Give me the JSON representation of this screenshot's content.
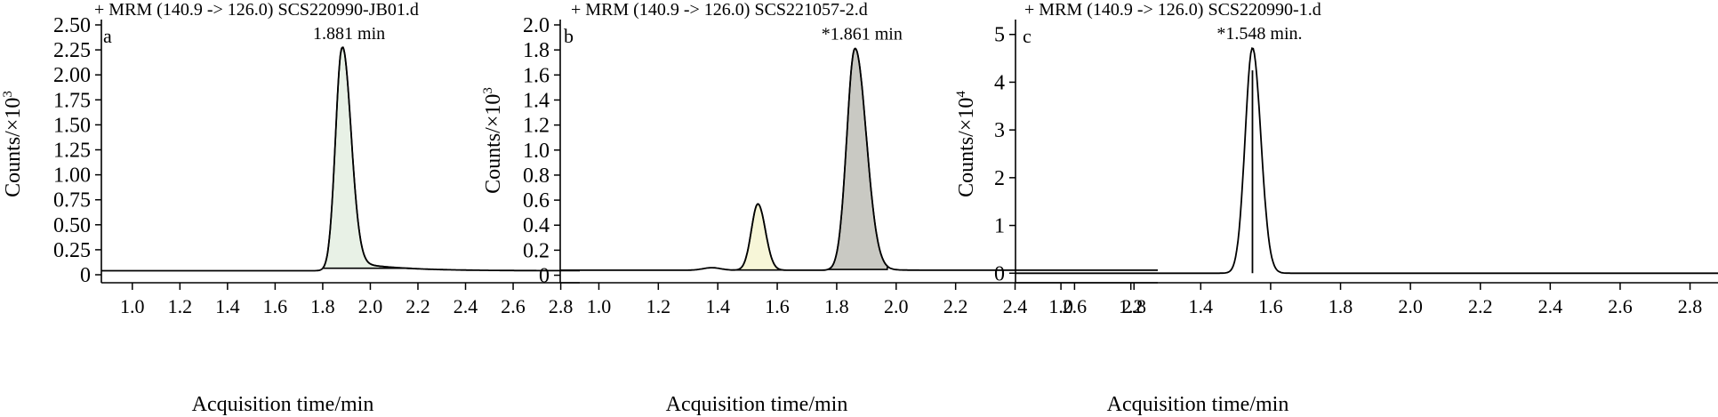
{
  "chart_data": [
    {
      "type": "line",
      "panel_label": "a",
      "title": "+ MRM (140.9 -> 126.0) SCS220990-JB01.d",
      "xlabel": "Acquisition time/min",
      "ylabel_prefix": "Counts/×10",
      "ylabel_exp": "3",
      "xlim": [
        0.87,
        2.88
      ],
      "ylim": [
        -0.08,
        2.5
      ],
      "xticks": [
        1.0,
        1.2,
        1.4,
        1.6,
        1.8,
        2.0,
        2.2,
        2.4,
        2.6,
        2.8
      ],
      "xtick_labels": [
        "1.0",
        "1.2",
        "1.4",
        "1.6",
        "1.8",
        "2.0",
        "2.2",
        "2.4",
        "2.6",
        "2.8"
      ],
      "yticks": [
        0,
        0.25,
        0.5,
        0.75,
        1.0,
        1.25,
        1.5,
        1.75,
        2.0,
        2.25,
        2.5
      ],
      "ytick_labels": [
        "0",
        "0.25",
        "0.50",
        "0.75",
        "1.00",
        "1.25",
        "1.50",
        "1.75",
        "2.00",
        "2.25",
        "2.50"
      ],
      "baseline": 0.04,
      "peaks": [
        {
          "rt": 1.881,
          "height": 2.23,
          "sigma_left": 0.027,
          "sigma_right": 0.037,
          "tail_amp": 0.105,
          "tail_tau": 0.19,
          "label": "1.881 min",
          "fill": "#e8f1e6",
          "integration": [
            1.8,
            2.17
          ]
        }
      ]
    },
    {
      "type": "line",
      "panel_label": "b",
      "title": "+ MRM (140.9 -> 126.0) SCS221057-2.d",
      "xlabel": "Acquisition time/min",
      "ylabel_prefix": "Counts/×10",
      "ylabel_exp": "3",
      "xlim": [
        0.87,
        2.88
      ],
      "ylim": [
        -0.06,
        2.0
      ],
      "xticks": [
        1.0,
        1.2,
        1.4,
        1.6,
        1.8,
        2.0,
        2.2,
        2.4,
        2.6,
        2.8
      ],
      "xtick_labels": [
        "1.0",
        "1.2",
        "1.4",
        "1.6",
        "1.8",
        "2.0",
        "2.2",
        "2.4",
        "2.6",
        "2.8"
      ],
      "yticks": [
        0,
        0.2,
        0.4,
        0.6,
        0.8,
        1.0,
        1.2,
        1.4,
        1.6,
        1.8,
        2.0
      ],
      "ytick_labels": [
        "0",
        "0.2",
        "0.4",
        "0.6",
        "0.8",
        "1.0",
        "1.2",
        "1.4",
        "1.6",
        "1.8",
        "2.0"
      ],
      "baseline": 0.04,
      "peaks": [
        {
          "rt": 1.38,
          "height": 0.02,
          "sigma_left": 0.03,
          "sigma_right": 0.03,
          "tail_amp": 0,
          "tail_tau": 0.1,
          "label": "",
          "fill": "none",
          "integration": null
        },
        {
          "rt": 1.535,
          "height": 0.53,
          "sigma_left": 0.022,
          "sigma_right": 0.025,
          "tail_amp": 0,
          "tail_tau": 0.1,
          "label": "",
          "fill": "#f7f6d8",
          "integration": [
            1.45,
            1.62
          ]
        },
        {
          "rt": 1.861,
          "height": 1.77,
          "sigma_left": 0.027,
          "sigma_right": 0.038,
          "tail_amp": 0.04,
          "tail_tau": 0.05,
          "label": "*1.861 min",
          "fill": "#c9c9c3",
          "integration": [
            1.77,
            1.97
          ]
        }
      ]
    },
    {
      "type": "line",
      "panel_label": "c",
      "title": "+ MRM (140.9 -> 126.0) SCS220990-1.d",
      "xlabel": "Acquisition time/min",
      "ylabel_prefix": "Counts/×10",
      "ylabel_exp": "4",
      "xlim": [
        0.87,
        2.88
      ],
      "ylim": [
        -0.2,
        5.2
      ],
      "xticks": [
        1.0,
        1.2,
        1.4,
        1.6,
        1.8,
        2.0,
        2.2,
        2.4,
        2.6,
        2.8
      ],
      "xtick_labels": [
        "1.0",
        "1.2",
        "1.4",
        "1.6",
        "1.8",
        "2.0",
        "2.2",
        "2.4",
        "2.6",
        "2.8"
      ],
      "yticks": [
        0,
        1,
        2,
        3,
        4,
        5
      ],
      "ytick_labels": [
        "0",
        "1",
        "2",
        "3",
        "4",
        "5"
      ],
      "baseline": 0.0,
      "peaks": [
        {
          "rt": 1.548,
          "height": 4.72,
          "sigma_left": 0.021,
          "sigma_right": 0.024,
          "tail_amp": 0,
          "tail_tau": 0.1,
          "label": "*1.548 min.",
          "fill": "none",
          "integration": null,
          "marker_line": true
        }
      ]
    }
  ]
}
